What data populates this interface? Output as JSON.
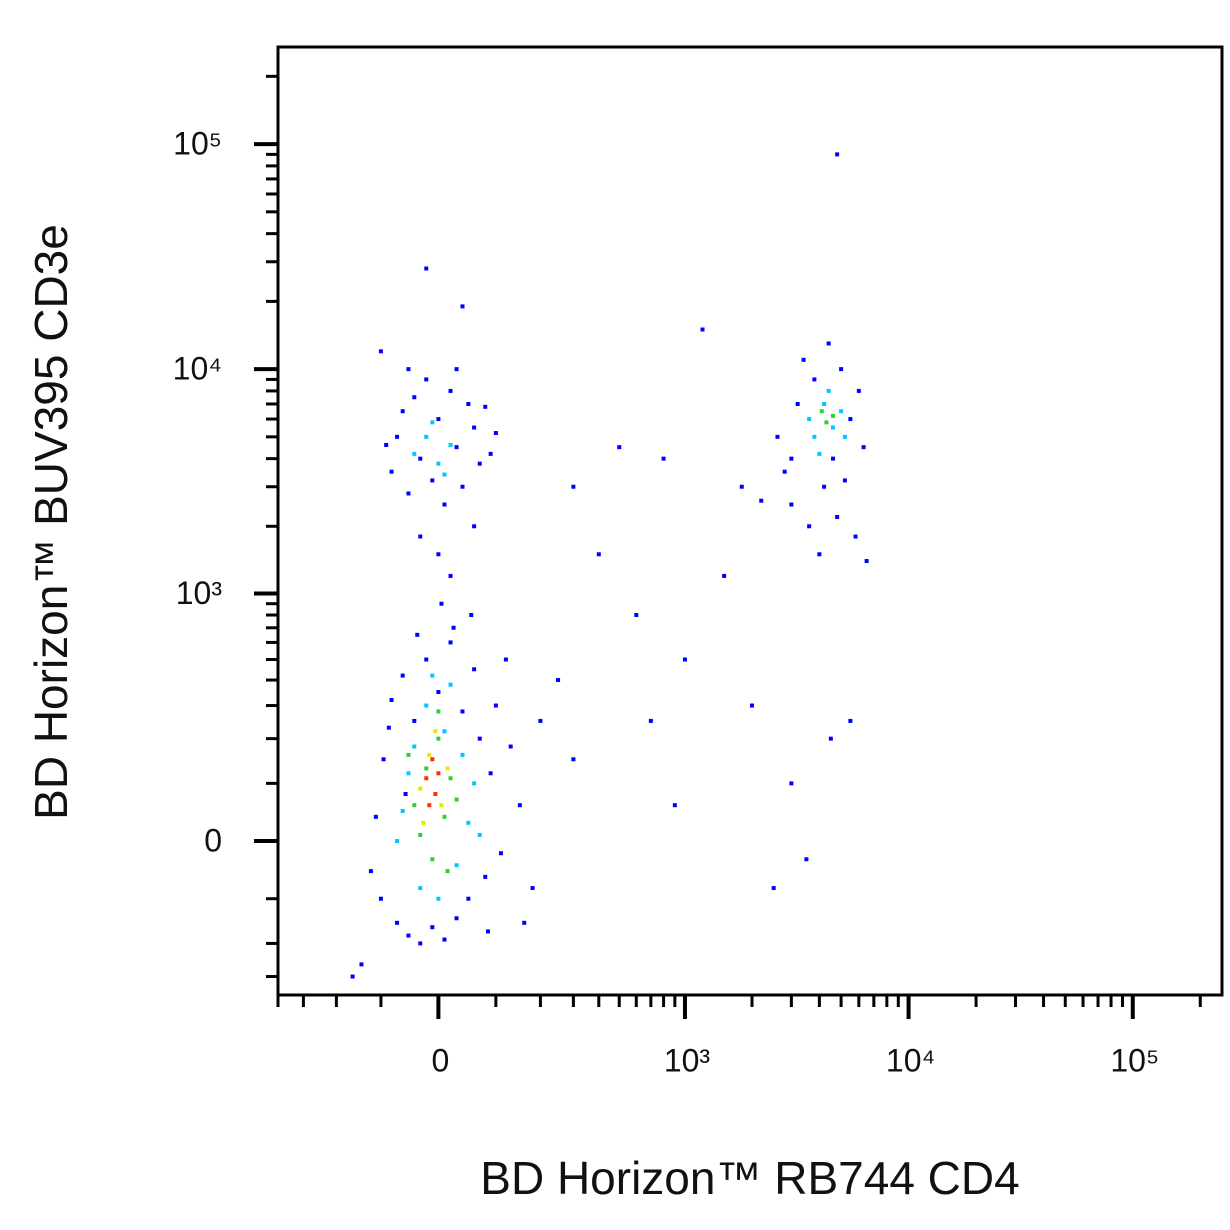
{
  "chart_data": {
    "type": "scatter",
    "x_label": "BD Horizon™ RB744 CD4",
    "y_label": "BD Horizon™ BUV395 CD3e",
    "xlim": [
      -400,
      250000
    ],
    "ylim": [
      -370,
      270000
    ],
    "xticks": [
      {
        "value": 0,
        "label": "0"
      },
      {
        "value": 1000,
        "label": "10³"
      },
      {
        "value": 10000,
        "label": "10⁴"
      },
      {
        "value": 100000,
        "label": "10⁵"
      }
    ],
    "yticks": [
      {
        "value": 0,
        "label": "0"
      },
      {
        "value": 1000,
        "label": "10³"
      },
      {
        "value": 10000,
        "label": "10⁴"
      },
      {
        "value": 100000,
        "label": "10⁵"
      }
    ],
    "xminorticks": [
      -400,
      -300,
      -200,
      -100,
      100,
      200,
      300,
      400,
      500,
      600,
      700,
      800,
      900,
      2000,
      3000,
      4000,
      5000,
      6000,
      7000,
      8000,
      9000,
      20000,
      30000,
      40000,
      50000,
      60000,
      70000,
      80000,
      90000,
      200000
    ],
    "yminorticks": [
      -300,
      -200,
      -100,
      100,
      200,
      300,
      400,
      500,
      600,
      700,
      800,
      900,
      2000,
      3000,
      4000,
      5000,
      6000,
      7000,
      8000,
      9000,
      20000,
      30000,
      40000,
      50000,
      60000,
      70000,
      80000,
      90000,
      200000
    ],
    "series": [
      {
        "color": "#0000ff",
        "x": [
          -120,
          -95,
          -80,
          -70,
          -60,
          -50,
          -40,
          -30,
          -20,
          -10,
          0,
          10,
          20,
          30,
          40,
          50,
          60,
          70,
          80,
          90,
          100,
          110,
          130,
          150,
          180,
          -110,
          -100,
          -85,
          25,
          55,
          -35,
          5,
          120,
          160,
          -140,
          -160,
          200,
          250,
          85,
          -55,
          -80,
          -70,
          -60,
          -50,
          -40,
          -30,
          -20,
          -10,
          0,
          10,
          20,
          30,
          40,
          50,
          60,
          70,
          80,
          90,
          100,
          -90,
          -30,
          0,
          20,
          60,
          30,
          -50,
          -20,
          40,
          -100,
          300,
          500,
          800,
          400,
          600,
          1000,
          1500,
          700,
          2000,
          300,
          900,
          2500,
          1800,
          2200,
          1200,
          2600,
          2800,
          3000,
          3200,
          3400,
          3600,
          3800,
          4000,
          4200,
          4400,
          4600,
          4800,
          5000,
          5200,
          5500,
          5800,
          6000,
          6300,
          6500,
          3000,
          4800,
          3000,
          4500,
          5500,
          3500
        ],
        "y": [
          -50,
          150,
          320,
          -150,
          420,
          -180,
          250,
          -200,
          500,
          -160,
          350,
          -190,
          600,
          -140,
          280,
          -100,
          450,
          200,
          -60,
          120,
          300,
          -20,
          180,
          60,
          -80,
          40,
          -100,
          230,
          700,
          800,
          650,
          900,
          500,
          -150,
          -260,
          -300,
          250,
          400,
          -170,
          80,
          3500,
          5000,
          6500,
          2800,
          7500,
          4000,
          9000,
          3200,
          6000,
          2500,
          8000,
          4500,
          3000,
          7000,
          5500,
          3800,
          6800,
          4200,
          5200,
          4600,
          1800,
          1500,
          1200,
          2000,
          10000,
          10000,
          28000,
          19000,
          12000,
          3000,
          4500,
          4000,
          1500,
          800,
          500,
          1200,
          250,
          300,
          150,
          60,
          -80,
          3000,
          2600,
          15000,
          5000,
          3500,
          2500,
          7000,
          11000,
          2000,
          9000,
          1500,
          3000,
          13000,
          4000,
          2200,
          10000,
          3200,
          6000,
          1800,
          8000,
          4500,
          1400,
          4000,
          90000,
          100,
          200,
          250,
          -30
        ]
      },
      {
        "color": "#00c8ff",
        "x": [
          -60,
          -40,
          -30,
          -20,
          0,
          10,
          30,
          40,
          50,
          -50,
          20,
          -10,
          60,
          70,
          -70,
          -40,
          -20,
          0,
          20,
          -10,
          10,
          3800,
          4200,
          4600,
          5000,
          4000,
          5200,
          4400,
          3600
        ],
        "y": [
          50,
          180,
          -80,
          300,
          -100,
          220,
          -40,
          160,
          30,
          120,
          380,
          420,
          100,
          10,
          0,
          4200,
          5000,
          3800,
          4600,
          5800,
          3400,
          5000,
          7000,
          5500,
          6500,
          4200,
          5000,
          8000,
          6000
        ]
      },
      {
        "color": "#30d030",
        "x": [
          -40,
          -20,
          -30,
          0,
          10,
          20,
          -10,
          30,
          -50,
          0,
          15,
          4300,
          4600,
          4100
        ],
        "y": [
          60,
          130,
          10,
          200,
          40,
          110,
          -30,
          70,
          160,
          280,
          -50,
          5800,
          6200,
          6500
        ]
      },
      {
        "color": "#e8e800",
        "x": [
          -30,
          -15,
          5,
          -5,
          15,
          -25
        ],
        "y": [
          90,
          160,
          60,
          220,
          130,
          30
        ]
      },
      {
        "color": "#ff3000",
        "x": [
          -20,
          -5,
          -10,
          0,
          -15
        ],
        "y": [
          110,
          80,
          150,
          120,
          60
        ]
      }
    ]
  }
}
